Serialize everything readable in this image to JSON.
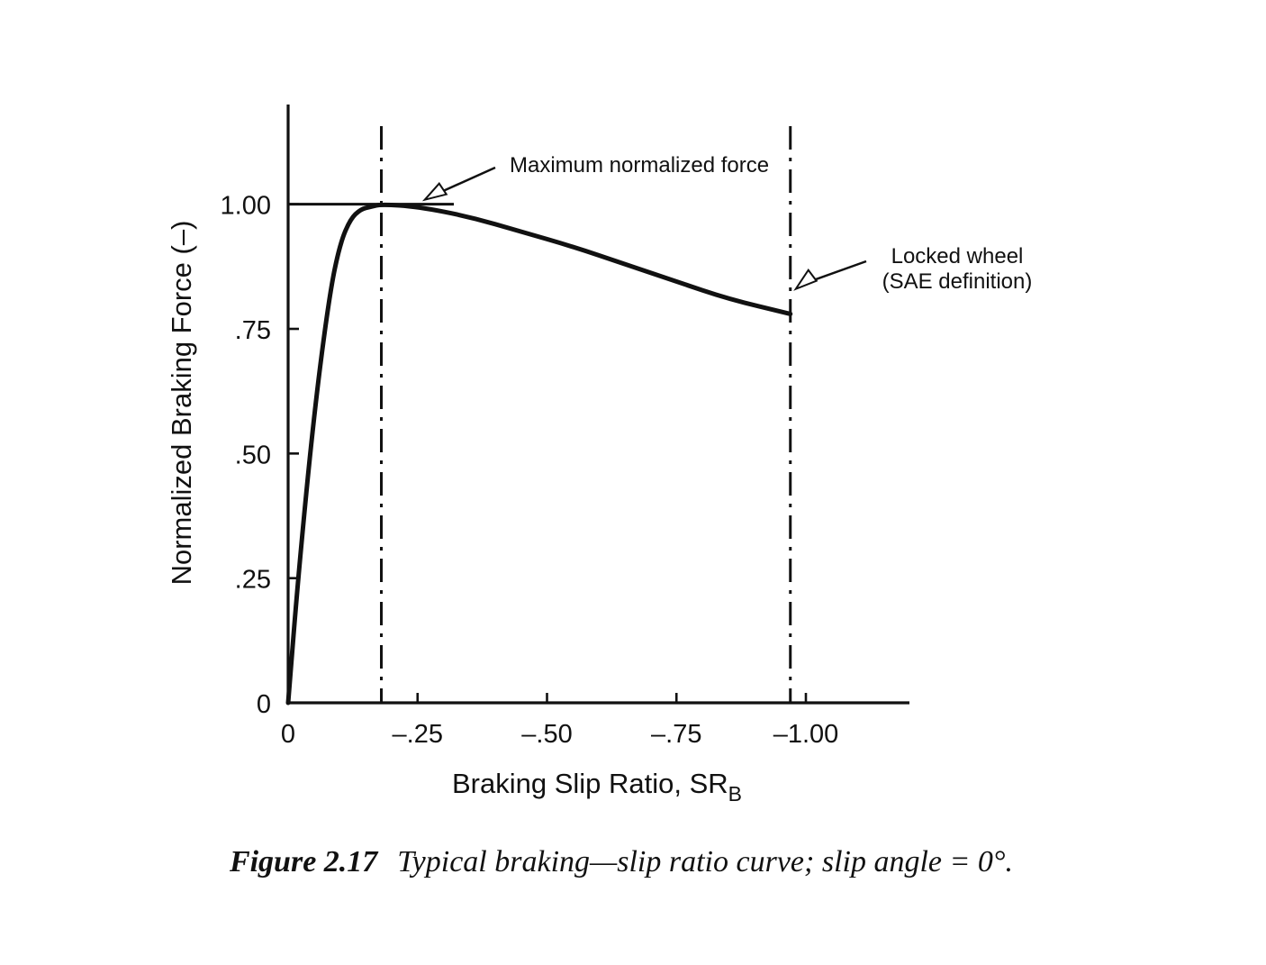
{
  "chart_data": {
    "type": "line",
    "xlabel": "Braking Slip Ratio, SR",
    "xlabel_subscript": "B",
    "ylabel": "Normalized Braking Force (–)",
    "x_ticks": [
      {
        "value": 0,
        "label": "0"
      },
      {
        "value": -0.25,
        "label": "–.25"
      },
      {
        "value": -0.5,
        "label": "–.50"
      },
      {
        "value": -0.75,
        "label": "–.75"
      },
      {
        "value": -1.0,
        "label": "–1.00"
      }
    ],
    "y_ticks": [
      {
        "value": 0,
        "label": "0"
      },
      {
        "value": 0.25,
        "label": ".25"
      },
      {
        "value": 0.5,
        "label": ".50"
      },
      {
        "value": 0.75,
        "label": ".75"
      },
      {
        "value": 1.0,
        "label": "1.00"
      }
    ],
    "xlim": [
      0,
      -1.2
    ],
    "ylim": [
      0,
      1.2
    ],
    "grid": false,
    "series": [
      {
        "x": [
          0,
          -0.02,
          -0.05,
          -0.08,
          -0.1,
          -0.12,
          -0.14,
          -0.16,
          -0.18,
          -0.25,
          -0.35,
          -0.45,
          -0.55,
          -0.65,
          -0.75,
          -0.85,
          -0.97
        ],
        "y": [
          0.0,
          0.26,
          0.58,
          0.82,
          0.92,
          0.97,
          0.99,
          0.995,
          1.0,
          0.995,
          0.975,
          0.945,
          0.915,
          0.88,
          0.845,
          0.81,
          0.78
        ]
      }
    ],
    "reference_lines": [
      {
        "orientation": "horizontal",
        "y": 1.0,
        "x_from": 0,
        "x_to": -0.32,
        "style": "solid"
      },
      {
        "orientation": "vertical",
        "x": -0.18,
        "style": "dash-dot"
      },
      {
        "orientation": "vertical",
        "x": -0.97,
        "style": "dash-dot"
      }
    ],
    "annotations": [
      {
        "lines": [
          "Maximum normalized force"
        ],
        "target": {
          "x": -0.25,
          "y": 1.0
        }
      },
      {
        "lines": [
          "Locked wheel",
          "(SAE definition)"
        ],
        "target": {
          "x": -0.97,
          "y": 0.83
        }
      }
    ]
  },
  "caption": {
    "label": "Figure 2.17",
    "text": "Typical braking—slip ratio curve; slip angle = 0°."
  }
}
